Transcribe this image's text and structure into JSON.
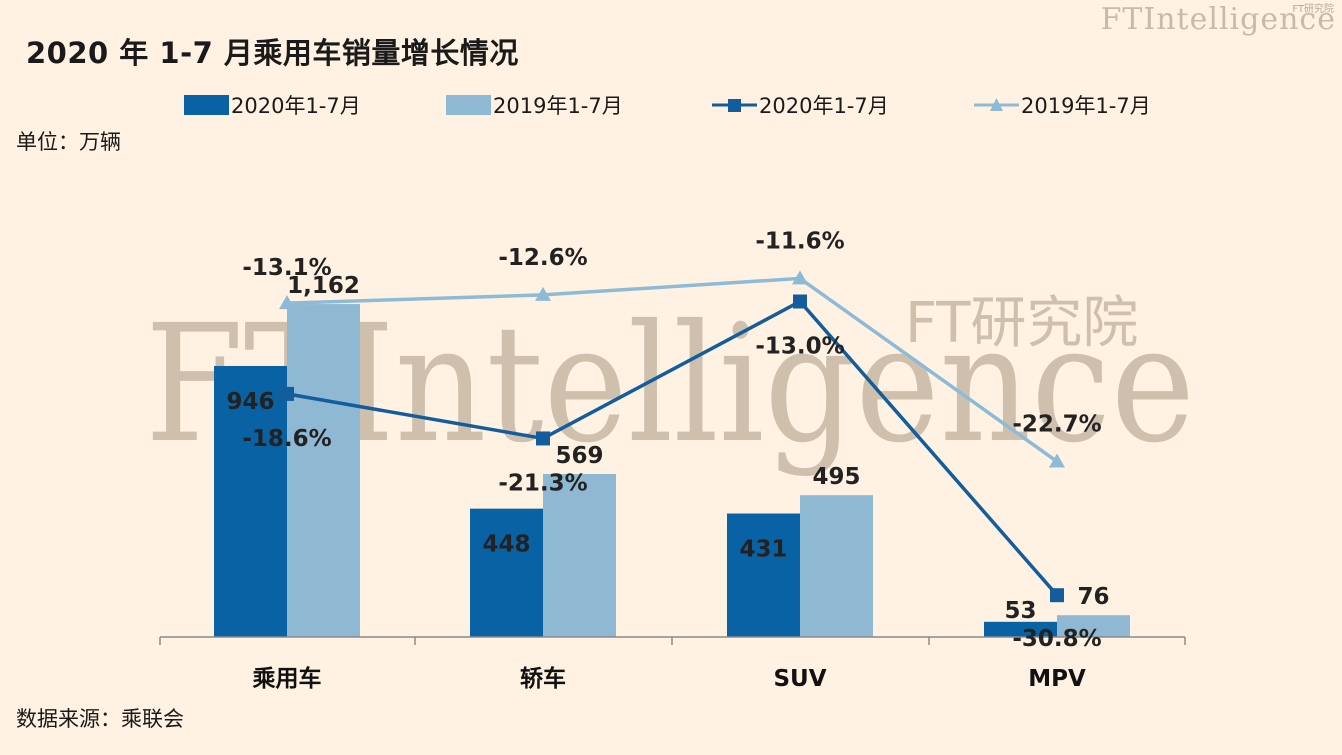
{
  "title": "2020 年 1-7 月乘用车销量增长情况",
  "brand": "FTIntelligence",
  "brand_sub": "FT研究院",
  "watermark": {
    "main": "FTIntelligence",
    "sub": "FT研究院"
  },
  "unit": "单位：万辆",
  "source": "数据来源：乘联会",
  "colors": {
    "bar2020": "#0862a3",
    "bar2019": "#8fb8d2",
    "line2020": "#135d9c",
    "line2019": "#8dbad6",
    "background": "#fff2e2"
  },
  "legend": [
    {
      "label": "2020年1-7月",
      "kind": "bar",
      "series": "bar2020"
    },
    {
      "label": "2019年1-7月",
      "kind": "bar",
      "series": "bar2019"
    },
    {
      "label": "2020年1-7月",
      "kind": "line-square",
      "series": "line2020"
    },
    {
      "label": "2019年1-7月",
      "kind": "line-triangle",
      "series": "line2019"
    }
  ],
  "chart_data": {
    "type": "bar",
    "categories": [
      "乘用车",
      "轿车",
      "SUV",
      "MPV"
    ],
    "series": [
      {
        "name": "2020年1-7月",
        "kind": "bar",
        "values": [
          946,
          448,
          431,
          53
        ],
        "labels": [
          "946",
          "448",
          "431",
          "53"
        ]
      },
      {
        "name": "2019年1-7月",
        "kind": "bar",
        "values": [
          1162,
          569,
          495,
          76
        ],
        "labels": [
          "1,162",
          "569",
          "495",
          "76"
        ]
      },
      {
        "name": "2020年1-7月",
        "kind": "line",
        "marker": "square",
        "values": [
          -18.6,
          -21.3,
          -13.0,
          -30.8
        ],
        "labels": [
          "-18.6%",
          "-21.3%",
          "-13.0%",
          "-30.8%"
        ]
      },
      {
        "name": "2019年1-7月",
        "kind": "line",
        "marker": "triangle",
        "values": [
          -13.1,
          -12.6,
          -11.6,
          -22.7
        ],
        "labels": [
          "-13.1%",
          "-12.6%",
          "-11.6%",
          "-22.7%"
        ]
      }
    ],
    "ylim": [
      0,
      1200
    ],
    "grid": false,
    "legend_position": "top"
  }
}
